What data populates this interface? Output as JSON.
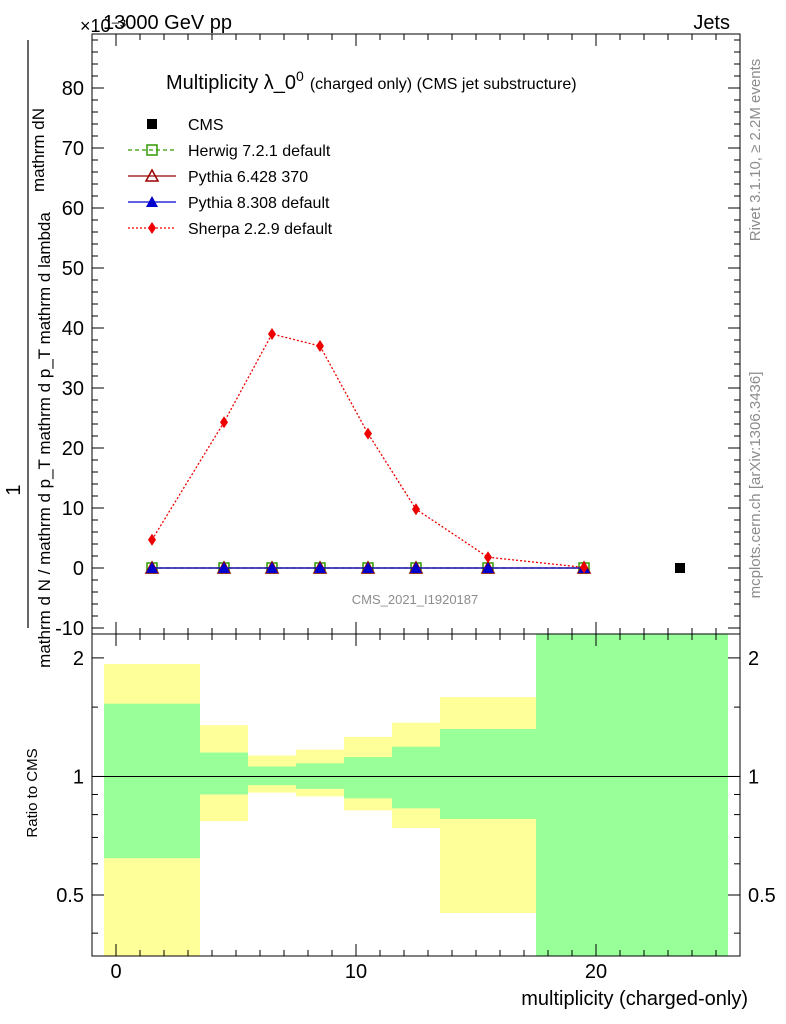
{
  "header": {
    "left": "13000 GeV pp",
    "right": "Jets",
    "exponent": "×10⁻³"
  },
  "title": {
    "main": "Multiplicity λ_0",
    "sup": "0",
    "suffix": "(charged only) (CMS jet substructure)"
  },
  "side_labels": {
    "rivet": "Rivet 3.1.10, ≥ 2.2M events",
    "mcplots": "mcplots.cern.ch [arXiv:1306.3436]"
  },
  "watermark": "CMS_2021_I1920187",
  "chart_data": [
    {
      "type": "line",
      "panel": "main",
      "ylabel_numerator": "1",
      "ylabel_fraction_num": "mathrm dN",
      "ylabel_denominator": "mathrm d N / mathrm d p_T mathrm d p_T mathrm d lambda",
      "y_multiplier": "×10⁻³",
      "xlim": [
        -1,
        26
      ],
      "ylim": [
        -11,
        89
      ],
      "yticks": [
        -10,
        0,
        10,
        20,
        30,
        40,
        50,
        60,
        70,
        80
      ],
      "legend_position": "top-left",
      "series": [
        {
          "name": "CMS",
          "color": "#000000",
          "marker": "square",
          "x": [
            23.5
          ],
          "y": [
            0
          ]
        },
        {
          "name": "Herwig 7.2.1 default",
          "color": "#339900",
          "marker": "open-square",
          "dash": "4,3",
          "x": [
            1.5,
            4.5,
            6.5,
            8.5,
            10.5,
            12.5,
            15.5,
            19.5
          ],
          "y": [
            0,
            0,
            0,
            0,
            0,
            0,
            0,
            0
          ]
        },
        {
          "name": "Pythia 6.428 370",
          "color": "#990000",
          "marker": "open-triangle",
          "x": [
            1.5,
            4.5,
            6.5,
            8.5,
            10.5,
            12.5,
            15.5,
            19.5
          ],
          "y": [
            0,
            0,
            0,
            0,
            0,
            0,
            0,
            0
          ]
        },
        {
          "name": "Pythia 8.308 default",
          "color": "#0000cc",
          "marker": "triangle",
          "x": [
            1.5,
            4.5,
            6.5,
            8.5,
            10.5,
            12.5,
            15.5,
            19.5
          ],
          "y": [
            0,
            0,
            0,
            0,
            0,
            0,
            0,
            0
          ]
        },
        {
          "name": "Sherpa 2.2.9 default",
          "color": "#ee0000",
          "marker": "diamond",
          "dash": "2,2",
          "x": [
            1.5,
            4.5,
            6.5,
            8.5,
            10.5,
            12.5,
            15.5,
            19.5
          ],
          "y": [
            4.7,
            24.3,
            39.0,
            37.0,
            22.4,
            9.8,
            1.8,
            0.1
          ]
        }
      ]
    },
    {
      "type": "area",
      "panel": "ratio",
      "ylabel": "Ratio to CMS",
      "xlabel": "multiplicity (charged-only)",
      "xlim": [
        -1,
        26
      ],
      "ylim": [
        0.35,
        2.3
      ],
      "log_y": true,
      "xticks": [
        0,
        10,
        20
      ],
      "yticks": [
        0.5,
        1,
        2
      ],
      "bins": [
        -0.5,
        3.5,
        5.5,
        7.5,
        9.5,
        11.5,
        13.5,
        17.5,
        21.5,
        25.5
      ],
      "band_inner_green": [
        [
          0.62,
          1.53
        ],
        [
          0.9,
          1.15
        ],
        [
          0.95,
          1.06
        ],
        [
          0.93,
          1.08
        ],
        [
          0.88,
          1.12
        ],
        [
          0.83,
          1.19
        ],
        [
          0.78,
          1.32
        ],
        [
          0.3,
          2.3
        ],
        [
          0.3,
          2.3
        ]
      ],
      "band_outer_yellow": [
        [
          0.3,
          1.93
        ],
        [
          0.77,
          1.35
        ],
        [
          0.91,
          1.13
        ],
        [
          0.89,
          1.17
        ],
        [
          0.82,
          1.26
        ],
        [
          0.74,
          1.37
        ],
        [
          0.45,
          1.59
        ],
        [
          0.3,
          2.3
        ],
        [
          0.3,
          2.3
        ]
      ],
      "colors": {
        "inner": "#99ff99",
        "outer": "#ffff99",
        "ref": "#000000"
      }
    }
  ]
}
